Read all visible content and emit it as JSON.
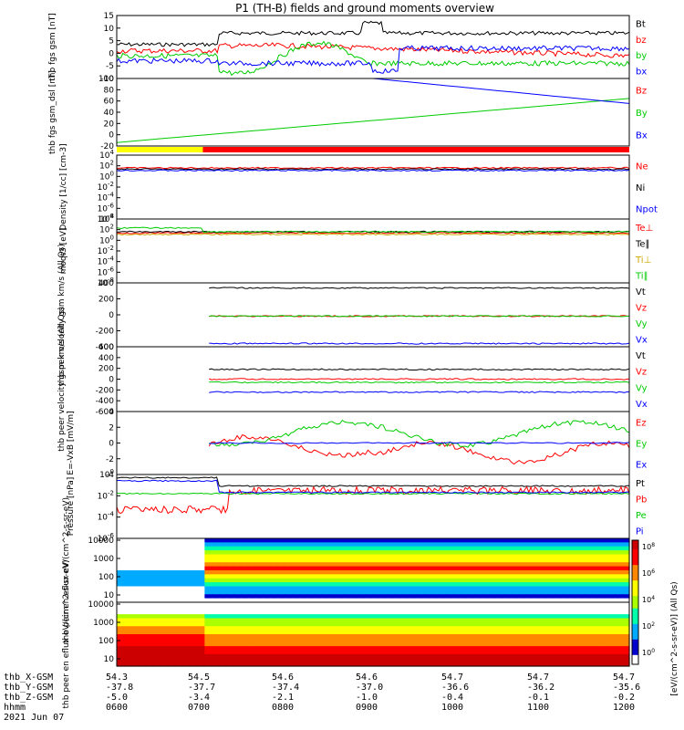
{
  "title": "P1 (TH-B) fields and ground moments overview",
  "chart_data": [
    {
      "type": "line",
      "ylabel": "thb fgs gsm [nT]",
      "ylim": [
        -10,
        15
      ],
      "yticks": [
        "15",
        "10",
        "5",
        "0",
        "-5",
        "-10"
      ],
      "series": [
        {
          "name": "Bt",
          "color": "#000000"
        },
        {
          "name": "bz",
          "color": "#ff0000"
        },
        {
          "name": "by",
          "color": "#00cc00"
        },
        {
          "name": "bx",
          "color": "#0000ff"
        }
      ]
    },
    {
      "type": "line",
      "ylabel": "thb fgs gsm_dsl [nT]",
      "ylim": [
        -35,
        100
      ],
      "yticks": [
        "100",
        "80",
        "60",
        "40",
        "20",
        "0",
        "-20"
      ],
      "series": [
        {
          "name": "Bz",
          "color": "#ff0000"
        },
        {
          "name": "By",
          "color": "#00cc00"
        },
        {
          "name": "Bx",
          "color": "#0000ff"
        }
      ]
    },
    {
      "type": "bar",
      "note": "mode bar",
      "segments": [
        {
          "from": "0600",
          "to": "0648",
          "color": "#ffff00"
        },
        {
          "from": "0648",
          "to": "1200",
          "color": "#ff0000"
        }
      ]
    },
    {
      "type": "line",
      "ylabel": "Density [1/cc] [cm-3]",
      "yscale": "log",
      "yticks": [
        "10^4",
        "10^2",
        "10^0",
        "10^-2",
        "10^-4",
        "10^-6",
        "10^-8"
      ],
      "series": [
        {
          "name": "Ne",
          "color": "#ff0000"
        },
        {
          "name": "Ni",
          "color": "#000000"
        },
        {
          "name": "Npot",
          "color": "#0000ff"
        }
      ]
    },
    {
      "type": "line",
      "ylabel": "moqt3 [eV]",
      "yscale": "log",
      "yticks": [
        "10^4",
        "10^2",
        "10^0",
        "10^-2",
        "10^-4",
        "10^-6",
        "10^-8"
      ],
      "series": [
        {
          "name": "Te⊥",
          "color": "#ff0000"
        },
        {
          "name": "Te∥",
          "color": "#000000"
        },
        {
          "name": "Ti⊥",
          "color": "#ccaa00"
        },
        {
          "name": "Ti∥",
          "color": "#00cc00"
        }
      ]
    },
    {
      "type": "line",
      "ylabel": "thb peir velocity gsm km/s (All Qs)",
      "yticks": [
        "400",
        "200",
        "0",
        "-200",
        "-400"
      ],
      "series": [
        {
          "name": "Vt",
          "color": "#000000"
        },
        {
          "name": "Vz",
          "color": "#ff0000"
        },
        {
          "name": "Vy",
          "color": "#00cc00"
        },
        {
          "name": "Vx",
          "color": "#0000ff"
        }
      ]
    },
    {
      "type": "line",
      "ylabel": "thb peer velocity gsm km/s (All Qs)",
      "yticks": [
        "600",
        "400",
        "200",
        "0",
        "-200",
        "-400",
        "-600"
      ],
      "series": [
        {
          "name": "Vt",
          "color": "#000000"
        },
        {
          "name": "Vz",
          "color": "#ff0000"
        },
        {
          "name": "Vy",
          "color": "#00cc00"
        },
        {
          "name": "Vx",
          "color": "#0000ff"
        }
      ]
    },
    {
      "type": "line",
      "ylabel": "E=-VxB [mV/m]",
      "yticks": [
        "4",
        "2",
        "0",
        "-2",
        "-4"
      ],
      "series": [
        {
          "name": "Ez",
          "color": "#ff0000"
        },
        {
          "name": "Ey",
          "color": "#00cc00"
        },
        {
          "name": "Ex",
          "color": "#0000ff"
        }
      ]
    },
    {
      "type": "line",
      "ylabel": "Pressure [nPa]",
      "yscale": "log",
      "yticks": [
        "10^0",
        "10^-2",
        "10^-4",
        "10^-6"
      ],
      "series": [
        {
          "name": "Pt",
          "color": "#000000"
        },
        {
          "name": "Pb",
          "color": "#ff0000"
        },
        {
          "name": "Pe",
          "color": "#00cc00"
        },
        {
          "name": "Pi",
          "color": "#0000ff"
        }
      ]
    },
    {
      "type": "heatmap",
      "ylabel": "thb peir en eflux eV/(cm^2-s-sr-eV)",
      "yticks": [
        "10000",
        "1000",
        "100",
        "10"
      ]
    },
    {
      "type": "heatmap",
      "ylabel": "thb peer en eflux eV/(cm^2-s-sr-eV)",
      "yticks": [
        "10000",
        "1000",
        "100",
        "10"
      ]
    }
  ],
  "colorbar": {
    "label": "[eV/(cm^2-s-sr-eV)] (All Qs)",
    "ticks": [
      "10^8",
      "10^6",
      "10^4",
      "10^2",
      "10^0"
    ]
  },
  "bottom": {
    "rows": [
      {
        "label": "thb_X-GSM",
        "values": [
          "54.3",
          "54.5",
          "54.6",
          "54.6",
          "54.7",
          "54.7",
          "54.7"
        ]
      },
      {
        "label": "thb_Y-GSM",
        "values": [
          "-37.8",
          "-37.7",
          "-37.4",
          "-37.0",
          "-36.6",
          "-36.2",
          "-35.6"
        ]
      },
      {
        "label": "thb_Z-GSM",
        "values": [
          "-5.0",
          "-3.4",
          "-2.1",
          "-1.0",
          "-0.4",
          "-0.1",
          "-0.2"
        ]
      },
      {
        "label": "hhmm",
        "values": [
          "0600",
          "0700",
          "0800",
          "0900",
          "1000",
          "1100",
          "1200"
        ]
      }
    ],
    "date": "2021 Jun 07"
  }
}
